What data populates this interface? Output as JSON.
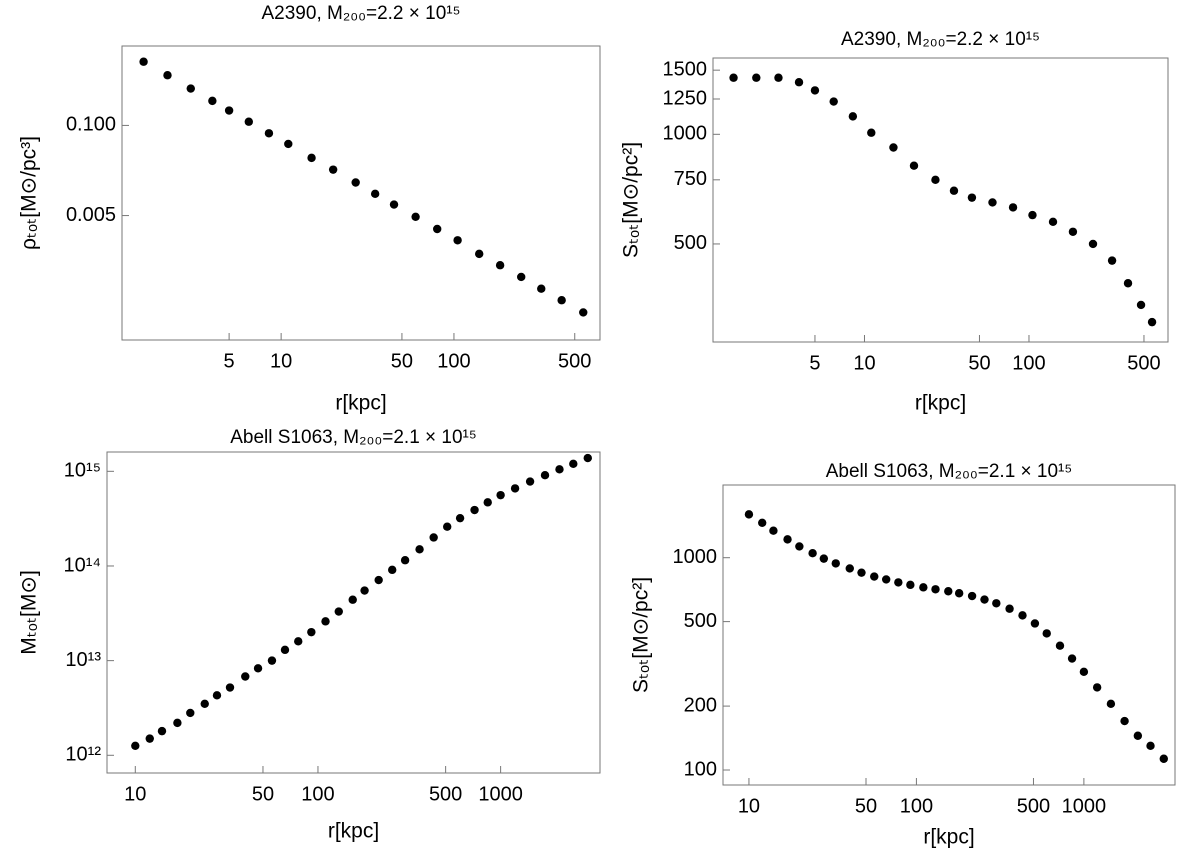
{
  "chart_data": [
    {
      "type": "scatter",
      "title": "A2390, M₂₀₀=2.2 × 10¹⁵",
      "x_label": "r[kpc]",
      "y_label": "ρₜₒₜ[M⊙/pc³]",
      "xscale": "log",
      "yscale": "log",
      "color": "#000000",
      "xlim": [
        1.2,
        700
      ],
      "ylim": [
        8e-05,
        1.4
      ],
      "xticks": [
        5,
        10,
        50,
        100,
        500
      ],
      "yticks": [
        {
          "value": 0.1,
          "label": "0.100"
        },
        0.005
      ],
      "x": [
        1.6,
        2.2,
        3,
        4,
        5,
        6.5,
        8.5,
        11,
        15,
        20,
        27,
        35,
        45,
        60,
        80,
        105,
        140,
        185,
        245,
        320,
        420,
        560
      ],
      "values": [
        0.83,
        0.53,
        0.34,
        0.226,
        0.164,
        0.113,
        0.077,
        0.054,
        0.034,
        0.023,
        0.015,
        0.0103,
        0.0072,
        0.0048,
        0.0032,
        0.0022,
        0.0014,
        0.00096,
        0.00065,
        0.00044,
        0.0003,
        0.0002
      ]
    },
    {
      "type": "scatter",
      "title": "A2390, M₂₀₀=2.2 × 10¹⁵",
      "x_label": "r[kpc]",
      "y_label": "Sₜₒₜ[M⊙/pc²]",
      "xscale": "log",
      "yscale": "log",
      "color": "#000000",
      "xlim": [
        1.2,
        700
      ],
      "ylim": [
        269,
        1620
      ],
      "xticks": [
        5,
        10,
        50,
        100,
        500
      ],
      "yticks": [
        500,
        750,
        1000,
        1250,
        1500
      ],
      "x": [
        1.6,
        2.2,
        3,
        4,
        5,
        6.5,
        8.5,
        11,
        15,
        20,
        27,
        35,
        45,
        60,
        80,
        105,
        140,
        185,
        245,
        320,
        400,
        480,
        560
      ],
      "values": [
        1430,
        1430,
        1430,
        1390,
        1320,
        1230,
        1120,
        1010,
        920,
        820,
        750,
        700,
        670,
        650,
        630,
        600,
        575,
        540,
        500,
        450,
        390,
        340,
        305
      ]
    },
    {
      "type": "scatter",
      "title": "Abell S1063, M₂₀₀=2.1 × 10¹⁵",
      "x_label": "r[kpc]",
      "y_label": "Mₜₒₜ[M⊙]",
      "xscale": "log",
      "yscale": "log",
      "color": "#000000",
      "xlim": [
        7,
        3500
      ],
      "ylim": [
        650000000000.0,
        1600000000000000.0
      ],
      "xticks": [
        10,
        50,
        100,
        500,
        1000
      ],
      "yticks": [
        {
          "value": 1000000000000.0,
          "label": "10¹²"
        },
        {
          "value": 10000000000000.0,
          "label": "10¹³"
        },
        {
          "value": 100000000000000.0,
          "label": "10¹⁴"
        },
        {
          "value": 1000000000000000.0,
          "label": "10¹⁵"
        }
      ],
      "x": [
        10,
        12,
        14,
        17,
        20,
        24,
        28,
        33,
        40,
        47,
        56,
        66,
        78,
        92,
        110,
        130,
        155,
        180,
        215,
        255,
        300,
        360,
        430,
        510,
        600,
        720,
        850,
        1000,
        1200,
        1450,
        1750,
        2100,
        2500,
        3000
      ],
      "values": [
        1260000000000.0,
        1500000000000.0,
        1800000000000.0,
        2200000000000.0,
        2800000000000.0,
        3500000000000.0,
        4300000000000.0,
        5200000000000.0,
        6800000000000.0,
        8300000000000.0,
        10000000000000.0,
        13000000000000.0,
        16000000000000.0,
        20000000000000.0,
        26000000000000.0,
        33000000000000.0,
        44000000000000.0,
        55000000000000.0,
        71000000000000.0,
        91000000000000.0,
        115000000000000.0,
        150000000000000.0,
        200000000000000.0,
        260000000000000.0,
        320000000000000.0,
        390000000000000.0,
        470000000000000.0,
        560000000000000.0,
        660000000000000.0,
        780000000000000.0,
        910000000000000.0,
        1050000000000000.0,
        1200000000000000.0,
        1380000000000000.0
      ]
    },
    {
      "type": "scatter",
      "title": "Abell S1063, M₂₀₀=2.1 × 10¹⁵",
      "x_label": "r[kpc]",
      "y_label": "Sₜₒₜ[M⊙/pc²]",
      "xscale": "log",
      "yscale": "log",
      "color": "#000000",
      "xlim": [
        7,
        3500
      ],
      "ylim": [
        85,
        2200
      ],
      "xticks": [
        10,
        50,
        100,
        500,
        1000
      ],
      "yticks": [
        100,
        200,
        500,
        1000
      ],
      "x": [
        10,
        12,
        14,
        17,
        20,
        24,
        28,
        33,
        40,
        47,
        56,
        66,
        78,
        92,
        110,
        130,
        155,
        180,
        215,
        255,
        300,
        360,
        430,
        510,
        600,
        720,
        850,
        1000,
        1200,
        1450,
        1750,
        2100,
        2500,
        3000
      ],
      "values": [
        1600,
        1460,
        1340,
        1220,
        1130,
        1050,
        990,
        940,
        890,
        850,
        815,
        790,
        765,
        745,
        725,
        710,
        695,
        680,
        660,
        635,
        610,
        575,
        535,
        490,
        440,
        385,
        335,
        290,
        245,
        205,
        170,
        145,
        130,
        113
      ]
    }
  ]
}
